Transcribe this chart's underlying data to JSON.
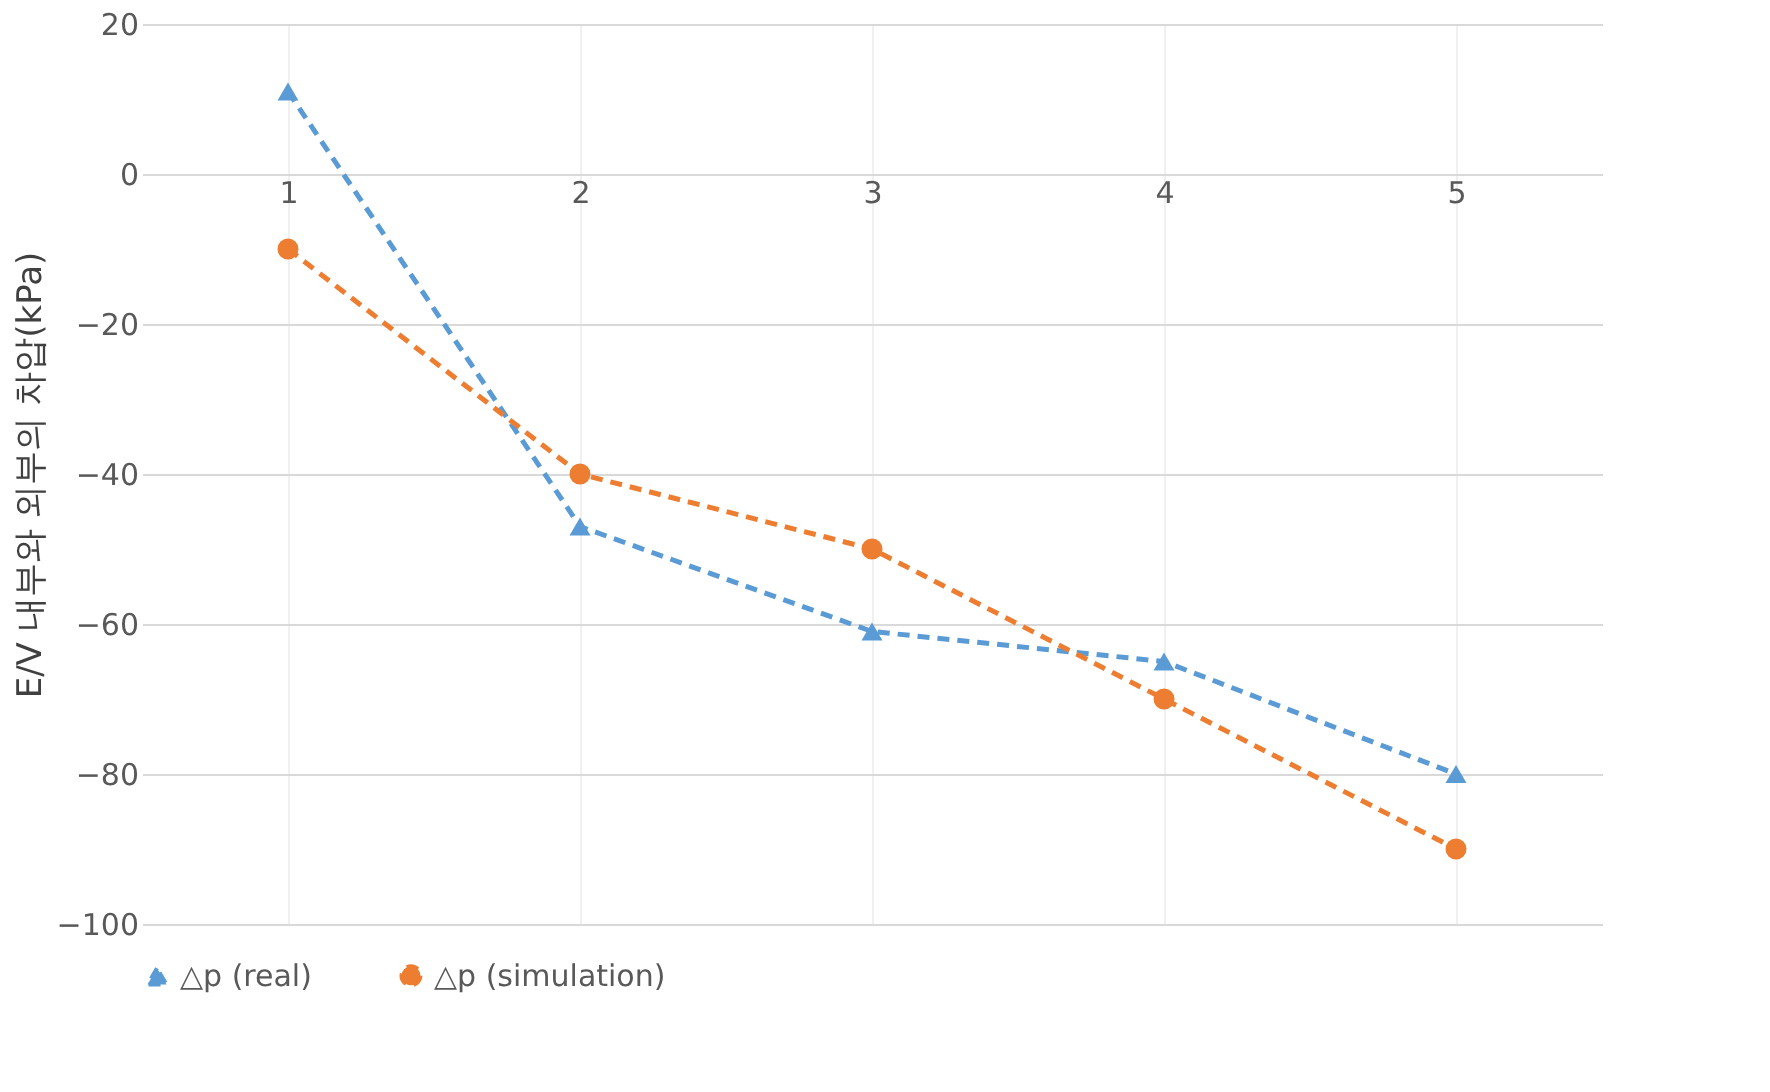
{
  "chart_data": {
    "type": "line",
    "ylabel": "E/V 내부와 외부의 차압(kPa)",
    "categories": [
      "1",
      "2",
      "3",
      "4",
      "5"
    ],
    "series": [
      {
        "name": "△p (real)",
        "color": "#5b9bd5",
        "marker": "triangle",
        "values": [
          11,
          -47,
          -61,
          -65,
          -80
        ]
      },
      {
        "name": "△p (simulation)",
        "color": "#ed7d31",
        "marker": "circle",
        "values": [
          -10,
          -40,
          -50,
          -70,
          -90
        ]
      }
    ],
    "ylim": [
      -100,
      20
    ],
    "yticks": [
      -100,
      -80,
      -60,
      -40,
      -20,
      0,
      20
    ],
    "grid": true,
    "legend": "bottom",
    "line_style": "dashed"
  }
}
